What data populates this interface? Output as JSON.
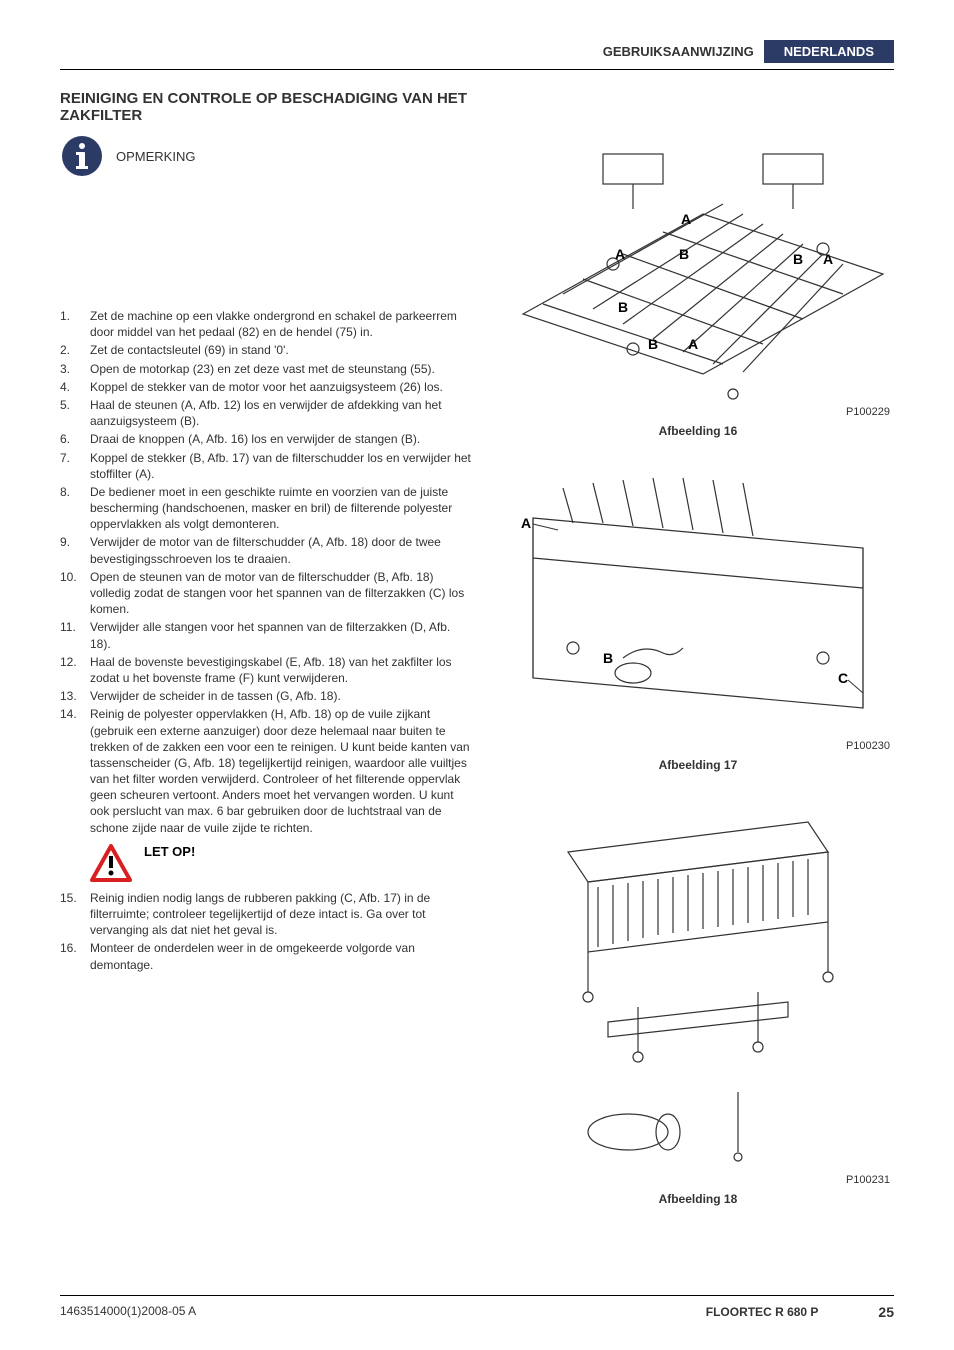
{
  "header": {
    "left_label": "GEBRUIKSAANWIJZING",
    "right_label": "NEDERLANDS"
  },
  "section_title": "REINIGING EN CONTROLE OP BESCHADIGING VAN HET ZAKFILTER",
  "note_label": "OPMERKING",
  "colors": {
    "accent": "#2b3b66",
    "warning_red": "#d82020",
    "text": "#333333"
  },
  "steps": [
    {
      "n": "1.",
      "t": "Zet de machine op een vlakke ondergrond en schakel de parkeerrem door middel van het pedaal (82) en de hendel (75) in."
    },
    {
      "n": "2.",
      "t": "Zet de contactsleutel (69) in stand '0'."
    },
    {
      "n": "3.",
      "t": "Open de motorkap (23) en zet deze vast met de steunstang (55)."
    },
    {
      "n": "4.",
      "t": "Koppel de stekker van de motor voor het aanzuigsysteem (26) los."
    },
    {
      "n": "5.",
      "t": "Haal de steunen (A, Afb. 12) los en verwijder de afdekking van het aanzuigsysteem (B)."
    },
    {
      "n": "6.",
      "t": "Draai de knoppen (A, Afb. 16) los en verwijder de stangen (B)."
    },
    {
      "n": "7.",
      "t": "Koppel de stekker (B, Afb. 17) van de filterschudder los en verwijder het stoffilter (A)."
    },
    {
      "n": "8.",
      "t": "De bediener moet in een geschikte ruimte en voorzien van de juiste bescherming (handschoenen, masker en bril) de filterende polyester oppervlakken als volgt demonteren."
    },
    {
      "n": "9.",
      "t": "Verwijder de motor van de filterschudder (A, Afb. 18) door de twee bevestigingsschroeven los te draaien."
    },
    {
      "n": "10.",
      "t": "Open de steunen van de motor van de filterschudder (B, Afb. 18) volledig zodat de stangen voor het spannen van de filterzakken (C) los komen."
    },
    {
      "n": "11.",
      "t": "Verwijder alle stangen voor het spannen van de filterzakken (D, Afb. 18)."
    },
    {
      "n": "12.",
      "t": "Haal de bovenste bevestigingskabel (E, Afb. 18) van het zakfilter los zodat u het bovenste frame (F) kunt verwijderen."
    },
    {
      "n": "13.",
      "t": "Verwijder de scheider in de tassen (G, Afb. 18)."
    },
    {
      "n": "14.",
      "t": "Reinig de polyester oppervlakken (H, Afb. 18) op de vuile zijkant (gebruik een externe aanzuiger) door deze helemaal naar buiten te trekken of de zakken een voor een te reinigen. U kunt beide kanten van tassenscheider (G, Afb. 18) tegelijkertijd reinigen, waardoor alle vuiltjes van het filter worden verwijderd. Controleer of het filterende oppervlak geen scheuren vertoont. Anders moet het vervangen worden. U kunt ook perslucht van max. 6 bar gebruiken door de luchtstraal van de schone zijde naar de vuile zijde te richten."
    }
  ],
  "attention_label": "LET OP!",
  "steps_after": [
    {
      "n": "15.",
      "t": "Reinig indien nodig langs de rubberen pakking (C, Afb. 17) in de filterruimte; controleer tegelijkertijd of deze intact is. Ga over tot vervanging als dat niet het geval is."
    },
    {
      "n": "16.",
      "t": "Monteer de onderdelen weer in de omgekeerde volgorde van demontage."
    }
  ],
  "figures": [
    {
      "id": "P100229",
      "caption": "Afbeelding 16"
    },
    {
      "id": "P100230",
      "caption": "Afbeelding 17"
    },
    {
      "id": "P100231",
      "caption": "Afbeelding 18"
    }
  ],
  "footer": {
    "doc_id": "1463514000(1)2008-05 A",
    "model": "FLOORTEC R 680 P",
    "page": "25"
  }
}
